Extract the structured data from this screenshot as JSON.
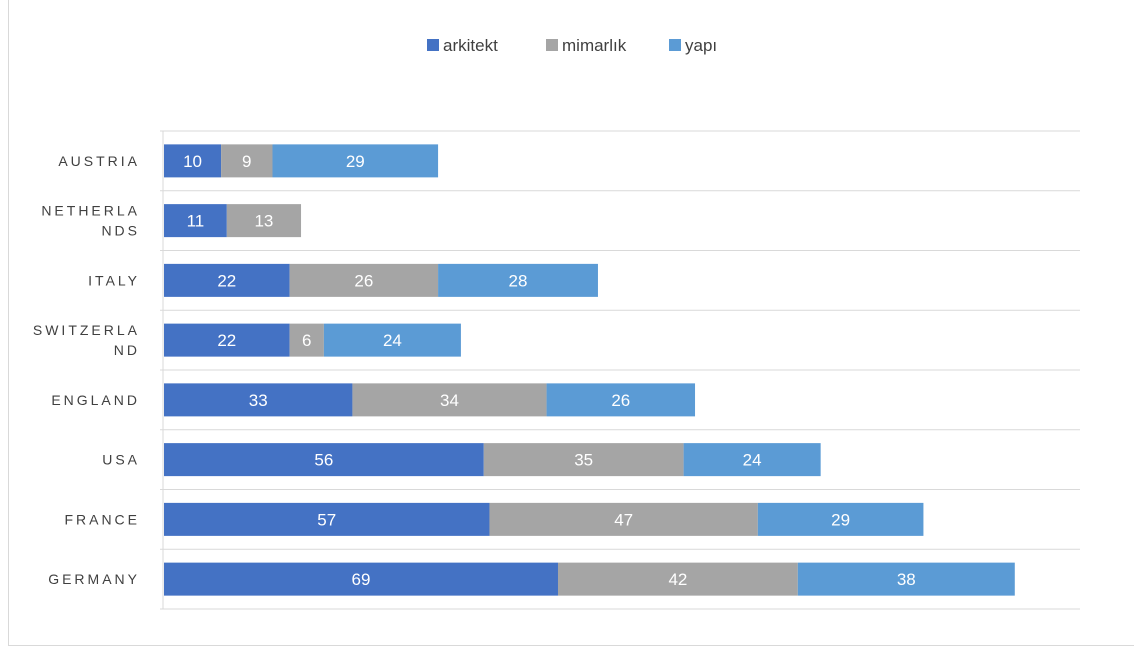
{
  "chart_data": {
    "type": "bar",
    "orientation": "horizontal",
    "stacked": true,
    "categories": [
      "AUSTRIA",
      "NETHERLANDS",
      "ITALY",
      "SWITZERLAND",
      "ENGLAND",
      "USA",
      "FRANCE",
      "GERMANY"
    ],
    "category_label_lines": [
      [
        "AUSTRIA"
      ],
      [
        "NETHERLA",
        "NDS"
      ],
      [
        "ITALY"
      ],
      [
        "SWITZERLA",
        "ND"
      ],
      [
        "ENGLAND"
      ],
      [
        "USA"
      ],
      [
        "FRANCE"
      ],
      [
        "GERMANY"
      ]
    ],
    "series": [
      {
        "name": "arkitekt",
        "color": "#4472C4",
        "values": [
          10,
          11,
          22,
          22,
          33,
          56,
          57,
          69
        ]
      },
      {
        "name": "mimarlık",
        "color": "#A5A5A5",
        "values": [
          9,
          13,
          26,
          6,
          34,
          35,
          47,
          42
        ]
      },
      {
        "name": "yapı",
        "color": "#5B9BD5",
        "values": [
          29,
          null,
          28,
          24,
          26,
          24,
          29,
          38
        ]
      }
    ],
    "xlim": [
      0,
      160
    ],
    "legend_position": "top",
    "grid": true,
    "title": "",
    "xlabel": "",
    "ylabel": ""
  }
}
